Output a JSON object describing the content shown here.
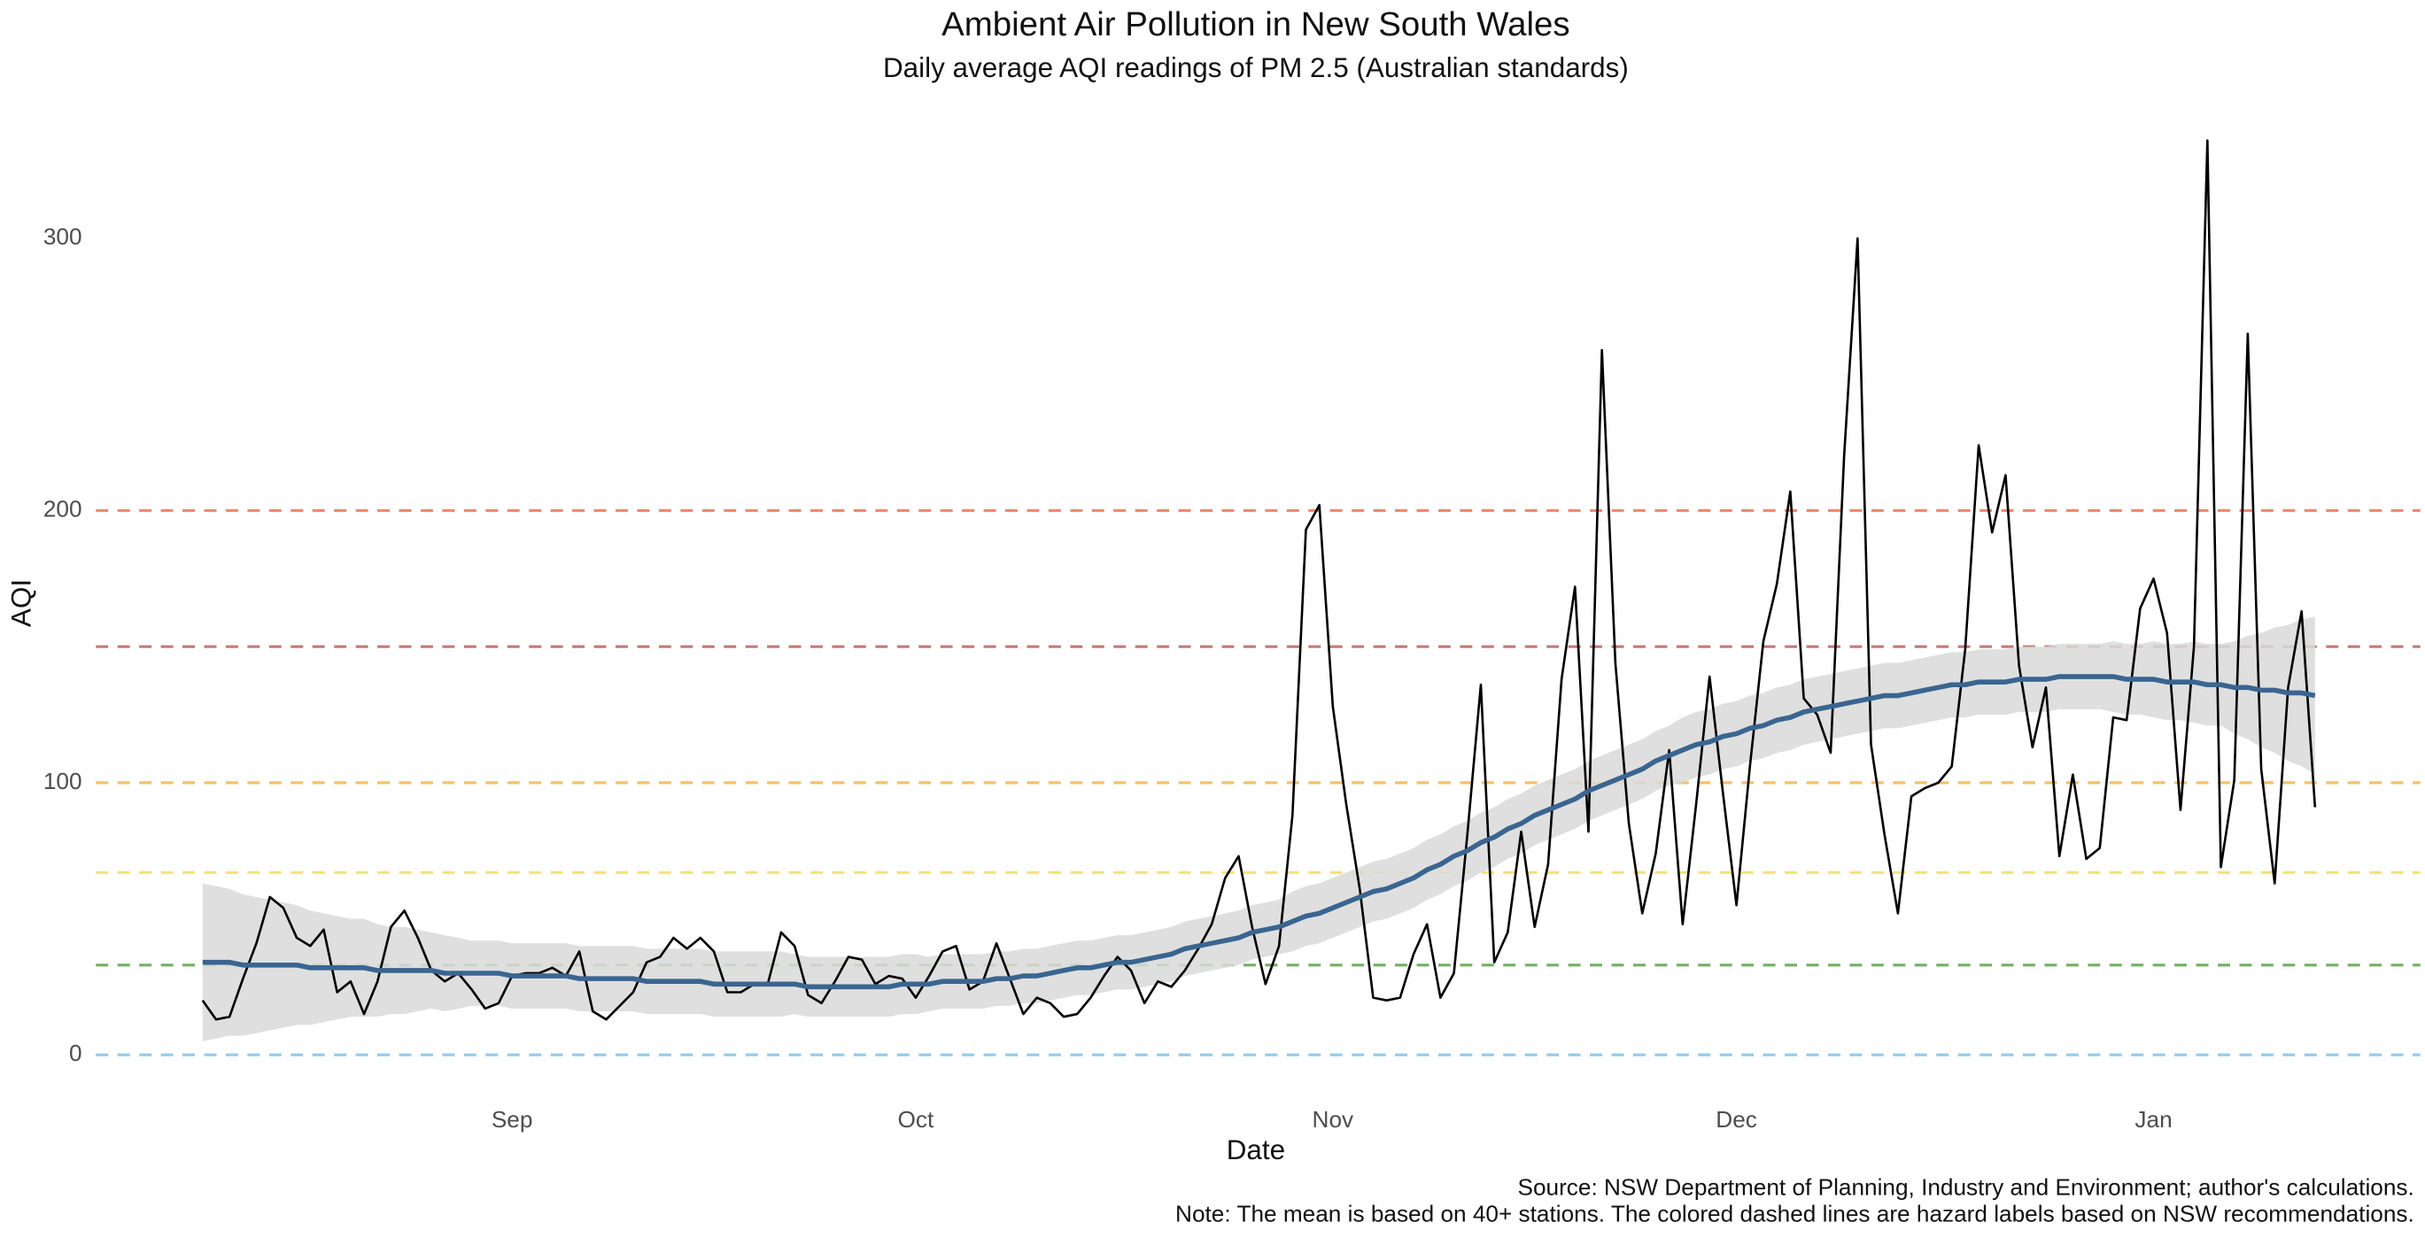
{
  "chart_data": {
    "type": "line",
    "title": "Ambient Air Pollution in New South Wales",
    "subtitle": "Daily average AQI readings of PM 2.5 (Australian standards)",
    "x_label": "Date",
    "y_label": "AQI",
    "caption": [
      "Source: NSW Department of Planning, Industry and Environment; author's calculations.",
      "Note: The mean is based on 40+ stations. The colored dashed lines are hazard labels based on NSW recommendations."
    ],
    "categories": [
      null,
      null,
      null,
      null,
      null,
      null,
      null,
      null,
      null,
      null,
      null,
      null,
      null,
      null,
      null,
      null,
      null,
      null,
      null,
      null,
      null,
      null,
      null,
      "Sep",
      null,
      null,
      null,
      null,
      null,
      null,
      null,
      null,
      null,
      null,
      null,
      null,
      null,
      null,
      null,
      null,
      null,
      null,
      null,
      null,
      null,
      null,
      null,
      null,
      null,
      null,
      null,
      null,
      null,
      "Oct",
      null,
      null,
      null,
      null,
      null,
      null,
      null,
      null,
      null,
      null,
      null,
      null,
      null,
      null,
      null,
      null,
      null,
      null,
      null,
      null,
      null,
      null,
      null,
      null,
      null,
      null,
      null,
      null,
      null,
      null,
      "Nov",
      null,
      null,
      null,
      null,
      null,
      null,
      null,
      null,
      null,
      null,
      null,
      null,
      null,
      null,
      null,
      null,
      null,
      null,
      null,
      null,
      null,
      null,
      null,
      null,
      null,
      null,
      null,
      null,
      null,
      "Dec",
      null,
      null,
      null,
      null,
      null,
      null,
      null,
      null,
      null,
      null,
      null,
      null,
      null,
      null,
      null,
      null,
      null,
      null,
      null,
      null,
      null,
      null,
      null,
      null,
      null,
      null,
      null,
      null,
      null,
      null,
      "Jan",
      null,
      null,
      null,
      null,
      null,
      null,
      null,
      null,
      null,
      null,
      null,
      null
    ],
    "series": [
      {
        "color": "#000000",
        "values": [
          20,
          13,
          14,
          28,
          41,
          58,
          54,
          43,
          40,
          46,
          23,
          27,
          15,
          27,
          47,
          53,
          43,
          31,
          27,
          30,
          24,
          17,
          19,
          29,
          30,
          30,
          32,
          29,
          38,
          16,
          13,
          18,
          23,
          34,
          36,
          43,
          39,
          43,
          38,
          23,
          23,
          26,
          26,
          45,
          40,
          22,
          19,
          27,
          36,
          35,
          26,
          29,
          28,
          21,
          29,
          38,
          40,
          24,
          27,
          41,
          28,
          15,
          21,
          19,
          14,
          15,
          21,
          29,
          36,
          31,
          19,
          27,
          25,
          31,
          39,
          48,
          65,
          73,
          47,
          26,
          40,
          88,
          193,
          202,
          128,
          92,
          61,
          21,
          20,
          21,
          37,
          48,
          21,
          30,
          81,
          136,
          34,
          45,
          82,
          47,
          70,
          138,
          172,
          82,
          259,
          144,
          85,
          52,
          74,
          112,
          48,
          92,
          139,
          96,
          55,
          106,
          152,
          173,
          207,
          131,
          125,
          111,
          220,
          300,
          114,
          81,
          52,
          95,
          98,
          100,
          106,
          149,
          224,
          192,
          213,
          143,
          113,
          135,
          73,
          103,
          72,
          76,
          124,
          123,
          164,
          175,
          155,
          90,
          150,
          336,
          69,
          101,
          265,
          105,
          63,
          135,
          163,
          91
        ]
      }
    ],
    "smooth": {
      "color": "#3a6590",
      "band_color": "#d9d9d9",
      "values": [
        34,
        34,
        34,
        33,
        33,
        33,
        33,
        33,
        32,
        32,
        32,
        32,
        32,
        31,
        31,
        31,
        31,
        31,
        30,
        30,
        30,
        30,
        30,
        29,
        29,
        29,
        29,
        29,
        28,
        28,
        28,
        28,
        28,
        27,
        27,
        27,
        27,
        27,
        26,
        26,
        26,
        26,
        26,
        26,
        26,
        25,
        25,
        25,
        25,
        25,
        25,
        25,
        26,
        26,
        26,
        27,
        27,
        27,
        27,
        28,
        28,
        29,
        29,
        30,
        31,
        32,
        32,
        33,
        34,
        34,
        35,
        36,
        37,
        39,
        40,
        41,
        42,
        43,
        45,
        46,
        47,
        49,
        51,
        52,
        54,
        56,
        58,
        60,
        61,
        63,
        65,
        68,
        70,
        73,
        75,
        78,
        80,
        83,
        85,
        88,
        90,
        92,
        94,
        97,
        99,
        101,
        103,
        105,
        108,
        110,
        112,
        114,
        115,
        117,
        118,
        120,
        121,
        123,
        124,
        126,
        127,
        128,
        129,
        130,
        131,
        132,
        132,
        133,
        134,
        135,
        136,
        136,
        137,
        137,
        137,
        138,
        138,
        138,
        139,
        139,
        139,
        139,
        139,
        138,
        138,
        138,
        137,
        137,
        137,
        136,
        136,
        135,
        135,
        134,
        134,
        133,
        133,
        132
      ],
      "errors": [
        29,
        28,
        27,
        26,
        25,
        24,
        23,
        22,
        21,
        20,
        19,
        18,
        18,
        17,
        16,
        16,
        15,
        14,
        14,
        13,
        12,
        12,
        12,
        12,
        12,
        12,
        12,
        12,
        12,
        12,
        12,
        12,
        12,
        12,
        12,
        12,
        12,
        12,
        12,
        12,
        12,
        12,
        12,
        12,
        11,
        11,
        11,
        11,
        11,
        11,
        11,
        11,
        11,
        11,
        10,
        10,
        10,
        10,
        10,
        10,
        10,
        10,
        10,
        10,
        10,
        10,
        10,
        10,
        10,
        10,
        10,
        10,
        10,
        10,
        10,
        10,
        10,
        10,
        10,
        10,
        10,
        11,
        11,
        11,
        11,
        11,
        11,
        11,
        11,
        11,
        11,
        11,
        11,
        11,
        11,
        11,
        11,
        11,
        11,
        11,
        11,
        11,
        11,
        11,
        11,
        11,
        11,
        11,
        11,
        11,
        12,
        12,
        12,
        12,
        12,
        12,
        12,
        12,
        12,
        12,
        12,
        12,
        12,
        12,
        12,
        12,
        12,
        12,
        12,
        12,
        12,
        12,
        12,
        12,
        12,
        12,
        12,
        12,
        12,
        12,
        12,
        12,
        13,
        13,
        13,
        14,
        14,
        14,
        15,
        15,
        15,
        17,
        19,
        21,
        23,
        25,
        27,
        29
      ]
    },
    "hazard_lines": [
      {
        "value": 0,
        "color": "#8fcbf0"
      },
      {
        "value": 33,
        "color": "#72b062"
      },
      {
        "value": 67,
        "color": "#f4e27a"
      },
      {
        "value": 100,
        "color": "#f6c16a"
      },
      {
        "value": 150,
        "color": "#c27b74"
      },
      {
        "value": 200,
        "color": "#ee8a6f"
      }
    ],
    "ylim": [
      -9,
      345
    ],
    "yticks": [
      0,
      100,
      200,
      300
    ],
    "grid": false
  }
}
